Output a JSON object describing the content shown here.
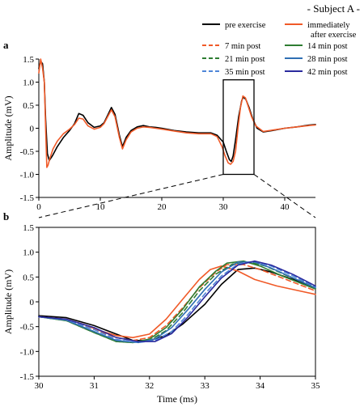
{
  "subject_label": "- Subject A -",
  "legend": [
    {
      "label": "pre exercise",
      "color": "#000000",
      "dash": "solid"
    },
    {
      "label": "immediately after exercise",
      "label_lines": [
        "immediately",
        "after exercise"
      ],
      "color": "#f05a28",
      "dash": "solid"
    },
    {
      "label": "7 min post",
      "color": "#f05a28",
      "dash": "dashed"
    },
    {
      "label": "14 min post",
      "color": "#2e7d32",
      "dash": "solid"
    },
    {
      "label": "21 min post",
      "color": "#2e7d32",
      "dash": "dashed"
    },
    {
      "label": "28 min post",
      "color": "#2f6fb3",
      "dash": "solid"
    },
    {
      "label": "35 min post",
      "color": "#4f86d8",
      "dash": "dashed"
    },
    {
      "label": "42 min post",
      "color": "#2a2a9e",
      "dash": "solid"
    }
  ],
  "chart_data": [
    {
      "panel": "a",
      "type": "line",
      "xlabel": "",
      "ylabel": "Amplitude (mV)",
      "xlim": [
        0,
        45
      ],
      "ylim": [
        -1.5,
        1.5
      ],
      "xticks": [
        0,
        10,
        20,
        30,
        40
      ],
      "yticks": [
        1.5,
        1.0,
        0.5,
        0,
        -0.5,
        -1.0,
        -1.5
      ],
      "yticklabels": [
        "1.5",
        "1.0",
        "0.5",
        "0",
        "-0.5",
        "-1.0",
        "-1.5"
      ],
      "zoom_box": {
        "x": [
          30,
          35
        ],
        "y": [
          -1.0,
          1.05
        ]
      },
      "series": [
        {
          "name": "pre exercise",
          "color": "#000000",
          "dash": "solid",
          "x": [
            0,
            0.3,
            0.6,
            0.9,
            1.1,
            1.4,
            1.7,
            2.2,
            3,
            4,
            5,
            5.8,
            6.5,
            7.2,
            8,
            9,
            10,
            10.6,
            11.2,
            11.8,
            12.4,
            13.1,
            13.6,
            14.2,
            15,
            16,
            17,
            18,
            19,
            20,
            22,
            24,
            26,
            28,
            29,
            30,
            30.5,
            31,
            31.3,
            31.6,
            32,
            32.5,
            33,
            33.3,
            33.7,
            34.2,
            34.8,
            35.5,
            36.5,
            38,
            40,
            42,
            44,
            45
          ],
          "y": [
            1.3,
            1.45,
            1.4,
            1.0,
            0.2,
            -0.55,
            -0.7,
            -0.6,
            -0.4,
            -0.2,
            -0.05,
            0.1,
            0.32,
            0.28,
            0.12,
            0.02,
            0.05,
            0.12,
            0.28,
            0.45,
            0.3,
            -0.15,
            -0.4,
            -0.2,
            -0.05,
            0.03,
            0.06,
            0.03,
            0.02,
            0.0,
            -0.05,
            -0.08,
            -0.1,
            -0.1,
            -0.15,
            -0.3,
            -0.5,
            -0.68,
            -0.72,
            -0.6,
            -0.25,
            0.25,
            0.6,
            0.68,
            0.62,
            0.45,
            0.2,
            0.0,
            -0.08,
            -0.05,
            0.0,
            0.03,
            0.07,
            0.08
          ]
        },
        {
          "name": "immediately after exercise",
          "color": "#f05a28",
          "dash": "solid",
          "x": [
            0,
            0.3,
            0.6,
            0.9,
            1.1,
            1.3,
            1.5,
            1.8,
            2.3,
            3,
            4,
            5,
            5.8,
            6.5,
            7.2,
            8,
            9,
            10,
            10.6,
            11.2,
            11.8,
            12.4,
            13.1,
            13.6,
            14.2,
            15,
            16,
            17,
            18,
            19,
            20,
            22,
            24,
            26,
            28,
            29,
            29.8,
            30.3,
            30.8,
            31.2,
            31.6,
            32,
            32.4,
            32.8,
            33.2,
            33.6,
            34,
            34.6,
            35.3,
            36.5,
            38,
            40,
            42,
            44,
            45
          ],
          "y": [
            1.2,
            1.5,
            1.3,
            1.0,
            0.0,
            -0.85,
            -0.8,
            -0.65,
            -0.45,
            -0.28,
            -0.12,
            -0.02,
            0.08,
            0.22,
            0.2,
            0.05,
            -0.02,
            0.02,
            0.1,
            0.25,
            0.4,
            0.25,
            -0.2,
            -0.45,
            -0.25,
            -0.08,
            0.0,
            0.03,
            0.02,
            0.0,
            -0.02,
            -0.06,
            -0.1,
            -0.12,
            -0.12,
            -0.18,
            -0.4,
            -0.6,
            -0.75,
            -0.78,
            -0.72,
            -0.5,
            0.0,
            0.45,
            0.7,
            0.66,
            0.5,
            0.25,
            0.05,
            -0.07,
            -0.04,
            0.0,
            0.03,
            0.06,
            0.07
          ]
        }
      ]
    },
    {
      "panel": "b",
      "type": "line",
      "xlabel": "Time (ms)",
      "ylabel": "Amplitude (mV)",
      "xlim": [
        30,
        35
      ],
      "ylim": [
        -1.5,
        1.5
      ],
      "xticks": [
        30,
        31,
        32,
        33,
        34,
        35
      ],
      "yticks": [
        1.5,
        1.0,
        0.5,
        0,
        -0.5,
        -1.0,
        -1.5
      ],
      "yticklabels": [
        "1.5",
        "1.0",
        "0.5",
        "0",
        "-0.5",
        "-1.0",
        "-1.5"
      ],
      "series": [
        {
          "name": "pre exercise",
          "color": "#000000",
          "dash": "solid",
          "x": [
            30,
            30.5,
            31,
            31.4,
            31.7,
            32,
            32.3,
            32.6,
            33,
            33.3,
            33.6,
            33.9,
            34.2,
            34.6,
            35
          ],
          "y": [
            -0.28,
            -0.32,
            -0.48,
            -0.65,
            -0.78,
            -0.78,
            -0.68,
            -0.45,
            -0.05,
            0.35,
            0.65,
            0.68,
            0.6,
            0.45,
            0.27
          ]
        },
        {
          "name": "immediately after exercise",
          "color": "#f05a28",
          "dash": "solid",
          "x": [
            30,
            30.5,
            30.8,
            31.1,
            31.4,
            31.7,
            32,
            32.3,
            32.6,
            32.9,
            33.1,
            33.3,
            33.6,
            33.9,
            34.3,
            35
          ],
          "y": [
            -0.3,
            -0.35,
            -0.45,
            -0.58,
            -0.68,
            -0.72,
            -0.65,
            -0.35,
            0.05,
            0.45,
            0.65,
            0.72,
            0.62,
            0.45,
            0.32,
            0.15
          ]
        },
        {
          "name": "7 min post",
          "color": "#f05a28",
          "dash": "dashed",
          "x": [
            30,
            30.5,
            31,
            31.4,
            31.7,
            32,
            32.3,
            32.6,
            32.9,
            33.2,
            33.4,
            33.7,
            34,
            34.4,
            35
          ],
          "y": [
            -0.3,
            -0.36,
            -0.55,
            -0.72,
            -0.78,
            -0.72,
            -0.48,
            -0.12,
            0.28,
            0.6,
            0.75,
            0.75,
            0.65,
            0.48,
            0.22
          ]
        },
        {
          "name": "14 min post",
          "color": "#2e7d32",
          "dash": "solid",
          "x": [
            30,
            30.5,
            31,
            31.4,
            31.7,
            32,
            32.3,
            32.6,
            32.9,
            33.2,
            33.4,
            33.7,
            34,
            34.4,
            35
          ],
          "y": [
            -0.3,
            -0.38,
            -0.62,
            -0.8,
            -0.82,
            -0.75,
            -0.52,
            -0.15,
            0.3,
            0.62,
            0.78,
            0.82,
            0.72,
            0.52,
            0.26
          ]
        },
        {
          "name": "21 min post",
          "color": "#2e7d32",
          "dash": "dashed",
          "x": [
            30,
            30.5,
            31,
            31.4,
            31.7,
            32,
            32.3,
            32.6,
            32.9,
            33.2,
            33.5,
            33.8,
            34.1,
            34.5,
            35
          ],
          "y": [
            -0.3,
            -0.38,
            -0.62,
            -0.8,
            -0.82,
            -0.78,
            -0.58,
            -0.22,
            0.22,
            0.56,
            0.76,
            0.8,
            0.72,
            0.52,
            0.3
          ]
        },
        {
          "name": "28 min post",
          "color": "#2f6fb3",
          "dash": "solid",
          "x": [
            30,
            30.5,
            31,
            31.4,
            31.8,
            32.1,
            32.4,
            32.7,
            33,
            33.3,
            33.6,
            33.9,
            34.2,
            34.6,
            35
          ],
          "y": [
            -0.3,
            -0.37,
            -0.6,
            -0.78,
            -0.82,
            -0.75,
            -0.52,
            -0.15,
            0.25,
            0.6,
            0.8,
            0.8,
            0.68,
            0.48,
            0.28
          ]
        },
        {
          "name": "35 min post",
          "color": "#4f86d8",
          "dash": "dashed",
          "x": [
            30,
            30.5,
            31,
            31.4,
            31.8,
            32.1,
            32.4,
            32.7,
            33,
            33.3,
            33.6,
            33.9,
            34.2,
            34.6,
            35
          ],
          "y": [
            -0.3,
            -0.36,
            -0.56,
            -0.76,
            -0.82,
            -0.78,
            -0.6,
            -0.25,
            0.16,
            0.52,
            0.76,
            0.82,
            0.72,
            0.52,
            0.3
          ]
        },
        {
          "name": "42 min post",
          "color": "#2a2a9e",
          "dash": "solid",
          "x": [
            30,
            30.5,
            31,
            31.4,
            31.8,
            32.1,
            32.4,
            32.7,
            33,
            33.3,
            33.6,
            33.9,
            34.2,
            34.6,
            35
          ],
          "y": [
            -0.3,
            -0.35,
            -0.52,
            -0.72,
            -0.8,
            -0.8,
            -0.64,
            -0.3,
            0.1,
            0.48,
            0.74,
            0.82,
            0.74,
            0.55,
            0.32
          ]
        }
      ]
    }
  ]
}
